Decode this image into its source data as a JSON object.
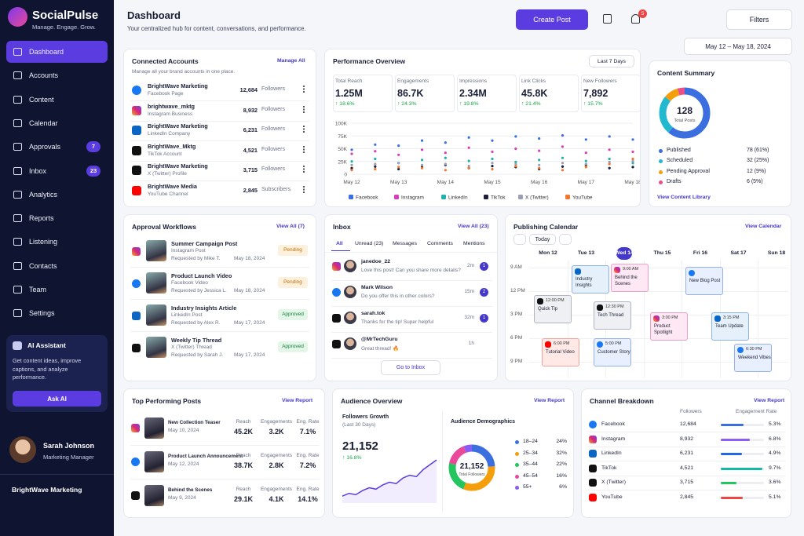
{
  "app": {
    "name": "SocialPulse",
    "tagline": "Manage. Engage. Grow."
  },
  "nav": [
    {
      "label": "Dashboard"
    },
    {
      "label": "Accounts"
    },
    {
      "label": "Content"
    },
    {
      "label": "Calendar"
    },
    {
      "label": "Approvals",
      "badge": 7
    },
    {
      "label": "Inbox",
      "badge": 23
    },
    {
      "label": "Analytics"
    },
    {
      "label": "Reports"
    },
    {
      "label": "Listening"
    },
    {
      "label": "Contacts"
    },
    {
      "label": "Team"
    },
    {
      "label": "Settings"
    }
  ],
  "assistant": {
    "title": "AI Assistant",
    "text": "Get content ideas, improve captions, and analyze performance.",
    "button": "Ask AI"
  },
  "user": {
    "name": "Sarah Johnson",
    "role": "Marketing Manager"
  },
  "workspace": "BrightWave Marketing",
  "header": {
    "title": "Dashboard",
    "subtitle": "Your centralized hub for content, conversations, and performance.",
    "create": "Create Post",
    "notifications": 5,
    "filters": "Filters",
    "date_range": "May 12 – May 18, 2024"
  },
  "accounts": {
    "title": "Connected Accounts",
    "subtitle": "Manage all your brand accounts in one place.",
    "action": "Manage All",
    "items": [
      {
        "name": "BrightWave Marketing",
        "type": "Facebook Page",
        "count": "12,684",
        "unit": "Followers"
      },
      {
        "name": "brightwave_mktg",
        "type": "Instagram Business",
        "count": "8,932",
        "unit": "Followers"
      },
      {
        "name": "BrightWave Marketing",
        "type": "LinkedIn Company",
        "count": "6,231",
        "unit": "Followers"
      },
      {
        "name": "BrightWave_Mktg",
        "type": "TikTok Account",
        "count": "4,521",
        "unit": "Followers"
      },
      {
        "name": "BrightWave Marketing",
        "type": "X (Twitter) Profile",
        "count": "3,715",
        "unit": "Followers"
      },
      {
        "name": "BrightWave Media",
        "type": "YouTube Channel",
        "count": "2,845",
        "unit": "Subscribers"
      }
    ]
  },
  "performance": {
    "title": "Performance Overview",
    "period": "Last 7 Days",
    "kpis": [
      {
        "label": "Total Reach",
        "value": "1.25M",
        "change": "↑ 18.6%"
      },
      {
        "label": "Engagements",
        "value": "86.7K",
        "change": "↑ 24.3%"
      },
      {
        "label": "Impressions",
        "value": "2.34M",
        "change": "↑ 19.8%"
      },
      {
        "label": "Link Clicks",
        "value": "45.8K",
        "change": "↑ 21.4%"
      },
      {
        "label": "New Followers",
        "value": "7,892",
        "change": "↑ 15.7%"
      }
    ],
    "chart": {
      "type": "line",
      "categories": [
        "May 12",
        null,
        "May 13",
        null,
        "May 14",
        null,
        "May 15",
        null,
        "May 16",
        null,
        "May 17",
        null,
        "May 18"
      ],
      "ylim": [
        0,
        100000
      ],
      "yticks": [
        0,
        {
          "value": 25000,
          "label": "25K"
        },
        {
          "value": 50000,
          "label": "50K"
        },
        {
          "value": 75000,
          "label": "75K"
        },
        {
          "value": 100000,
          "label": "100K"
        }
      ],
      "grid": true,
      "series": [
        {
          "name": "Facebook",
          "color": "#3b6fe0",
          "values": [
            48000,
            58000,
            56000,
            66000,
            62000,
            72000,
            66000,
            74000,
            70000,
            76000,
            68000,
            74000,
            68000
          ]
        },
        {
          "name": "Instagram",
          "color": "#d63fb8",
          "values": [
            40000,
            45000,
            38000,
            48000,
            42000,
            52000,
            44000,
            50000,
            46000,
            54000,
            42000,
            48000,
            44000
          ]
        },
        {
          "name": "LinkedIn",
          "color": "#20b2aa",
          "values": [
            25000,
            30000,
            22000,
            28000,
            32000,
            26000,
            30000,
            24000,
            28000,
            32000,
            26000,
            30000,
            22000
          ]
        },
        {
          "name": "TikTok",
          "color": "#1a1f36",
          "values": [
            12000,
            15000,
            10000,
            14000,
            18000,
            12000,
            16000,
            14000,
            10000,
            15000,
            18000,
            12000,
            14000
          ]
        },
        {
          "name": "X (Twitter)",
          "color": "#9aa0b4",
          "values": [
            18000,
            20000,
            22000,
            18000,
            20000,
            16000,
            22000,
            20000,
            18000,
            22000,
            20000,
            24000,
            26000
          ]
        },
        {
          "name": "YouTube",
          "color": "#f2762e",
          "values": [
            8000,
            10000,
            14000,
            12000,
            8000,
            12000,
            10000,
            16000,
            12000,
            8000,
            14000,
            20000,
            30000
          ]
        }
      ]
    }
  },
  "content_summary": {
    "title": "Content Summary",
    "total": 128,
    "total_label": "Total Posts",
    "action": "View Content Library",
    "items": [
      {
        "name": "Published",
        "value": 78,
        "label": "78 (61%)",
        "color": "#3b6fe0"
      },
      {
        "name": "Scheduled",
        "value": 32,
        "label": "32 (25%)",
        "color": "#22b8cf"
      },
      {
        "name": "Pending Approval",
        "value": 12,
        "label": "12 (9%)",
        "color": "#f59e0b"
      },
      {
        "name": "Drafts",
        "value": 6,
        "label": "6 (5%)",
        "color": "#e94f8a"
      }
    ]
  },
  "approvals": {
    "title": "Approval Workflows",
    "action": "View All (7)",
    "items": [
      {
        "title": "Summer Campaign Post",
        "type": "Instagram Post",
        "requester": "Requested by Mike T.",
        "date": "May 18, 2024",
        "status": "Pending"
      },
      {
        "title": "Product Launch Video",
        "type": "Facebook Video",
        "requester": "Requested by Jessica L.",
        "date": "May 18, 2024",
        "status": "Pending"
      },
      {
        "title": "Industry Insights Article",
        "type": "LinkedIn Post",
        "requester": "Requested by Alex R.",
        "date": "May 17, 2024",
        "status": "Approved"
      },
      {
        "title": "Weekly Tip Thread",
        "type": "X (Twitter) Thread",
        "requester": "Requested by Sarah J.",
        "date": "May 17, 2024",
        "status": "Approved"
      }
    ]
  },
  "inbox": {
    "title": "Inbox",
    "action": "View All (23)",
    "tabs": [
      "All",
      "Unread (23)",
      "Messages",
      "Comments",
      "Mentions"
    ],
    "button": "Go to Inbox",
    "messages": [
      {
        "from": "janedoe_22",
        "text": "Love this post! Can you share more details?",
        "time": "2m",
        "unread": 1
      },
      {
        "from": "Mark Wilson",
        "text": "Do you offer this in other colors?",
        "time": "15m",
        "unread": 2
      },
      {
        "from": "sarah.tok",
        "text": "Thanks for the tip! Super helpful",
        "time": "32m",
        "unread": 1
      },
      {
        "from": "@MrTechGuru",
        "text": "Great thread! 🔥",
        "time": "1h"
      }
    ]
  },
  "calendar": {
    "title": "Publishing Calendar",
    "action": "View Calendar",
    "today": "Today",
    "days": [
      "Mon 12",
      "Tue 13",
      "Wed 14",
      "Thu 15",
      "Fri 16",
      "Sat 17",
      "Sun 18"
    ],
    "times": [
      "9 AM",
      "12 PM",
      "3 PM",
      "6 PM",
      "9 PM"
    ],
    "events": [
      {
        "title": "Industry Insights"
      },
      {
        "title": "Behind the Scenes",
        "time": "9:00 AM"
      },
      {
        "title": "New Blog Post"
      },
      {
        "title": "Quick Tip",
        "time": "12:00 PM"
      },
      {
        "title": "Tech Thread",
        "time": "12:30 PM"
      },
      {
        "title": "Product Spotlight",
        "time": "3:00 PM"
      },
      {
        "title": "Team Update",
        "time": "3:15 PM"
      },
      {
        "title": "Tutorial Video",
        "time": "6:00 PM"
      },
      {
        "title": "Customer Story",
        "time": "5:00 PM"
      },
      {
        "title": "Weekend Vibes",
        "time": "6:30 PM"
      }
    ]
  },
  "top_posts": {
    "title": "Top Performing Posts",
    "action": "View Report",
    "columns": [
      "Reach",
      "Engagements",
      "Eng. Rate"
    ],
    "items": [
      {
        "title": "New Collection Teaser",
        "date": "May 10, 2024",
        "reach": "45.2K",
        "engagements": "3.2K",
        "rate": "7.1%"
      },
      {
        "title": "Product Launch Announcement",
        "date": "May 12, 2024",
        "reach": "38.7K",
        "engagements": "2.8K",
        "rate": "7.2%"
      },
      {
        "title": "Behind the Scenes",
        "date": "May 9, 2024",
        "reach": "29.1K",
        "engagements": "4.1K",
        "rate": "14.1%"
      }
    ]
  },
  "audience": {
    "title": "Audience Overview",
    "action": "View Report",
    "growth_label": "Followers Growth",
    "growth_period": "(Last 30 Days)",
    "growth_value": "21,152",
    "growth_change": "↑ 16.8%",
    "growth": {
      "values": [
        10,
        14,
        12,
        18,
        22,
        20,
        26,
        30,
        28,
        36,
        40,
        38,
        48,
        55,
        62
      ],
      "ylim": [
        0,
        70
      ]
    },
    "demo_title": "Audience Demographics",
    "total": "21,152",
    "total_label": "Total Followers",
    "ages": [
      {
        "name": "18–24",
        "value": 24,
        "label": "24%",
        "color": "#3b6fe0"
      },
      {
        "name": "25–34",
        "value": 32,
        "label": "32%",
        "color": "#f59e0b"
      },
      {
        "name": "35–44",
        "value": 22,
        "label": "22%",
        "color": "#22c55e"
      },
      {
        "name": "45–54",
        "value": 16,
        "label": "16%",
        "color": "#ec4899"
      },
      {
        "name": "55+",
        "value": 6,
        "label": "6%",
        "color": "#8b5cf6"
      }
    ]
  },
  "channels": {
    "title": "Channel Breakdown",
    "action": "View Report",
    "columns": [
      "Followers",
      "Engagement Rate"
    ],
    "rate_lim": [
      0,
      10
    ],
    "rows": [
      {
        "name": "Facebook",
        "followers": "12,684",
        "rate": 5.3,
        "rate_label": "5.3%",
        "color": "#3b6fe0"
      },
      {
        "name": "Instagram",
        "followers": "8,932",
        "rate": 6.8,
        "rate_label": "6.8%",
        "color": "#8b5cf6"
      },
      {
        "name": "LinkedIn",
        "followers": "6,231",
        "rate": 4.9,
        "rate_label": "4.9%",
        "color": "#2563eb"
      },
      {
        "name": "TikTok",
        "followers": "4,521",
        "rate": 9.7,
        "rate_label": "9.7%",
        "color": "#14b8a6"
      },
      {
        "name": "X (Twitter)",
        "followers": "3,715",
        "rate": 3.6,
        "rate_label": "3.6%",
        "color": "#22c55e"
      },
      {
        "name": "YouTube",
        "followers": "2,845",
        "rate": 5.1,
        "rate_label": "5.1%",
        "color": "#ef4444"
      }
    ]
  }
}
